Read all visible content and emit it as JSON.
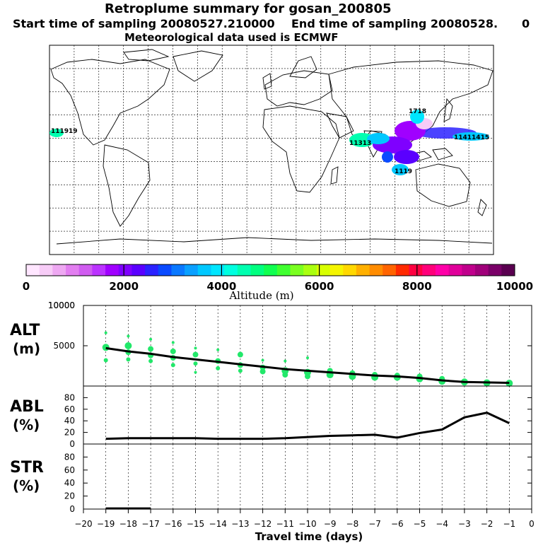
{
  "header": {
    "title": "Retroplume summary for gosan_200805",
    "start_label": "Start time of sampling 20080527.210000",
    "end_label": "End time of sampling 20080528.",
    "end_suffix": "0",
    "met_label": "Meteorological data used is ECMWF"
  },
  "colorbar": {
    "label": "Altitude (m)",
    "tick_labels": [
      "0",
      "2000",
      "4000",
      "6000",
      "8000",
      "10000"
    ],
    "colors": [
      "#ffe6ff",
      "#f7ccf7",
      "#eea8f2",
      "#e27ef0",
      "#d05cf0",
      "#bb33ff",
      "#a000ff",
      "#7f00ff",
      "#5a00ff",
      "#2b22ff",
      "#0a4aff",
      "#0a78ff",
      "#0aa0ff",
      "#00c8ff",
      "#00e6ff",
      "#00ffe0",
      "#00ffb0",
      "#00ff80",
      "#10ff50",
      "#40ff30",
      "#7aff20",
      "#aaff10",
      "#d8ff00",
      "#f5f500",
      "#ffd800",
      "#ffb000",
      "#ff8c00",
      "#ff6400",
      "#ff2a00",
      "#ff0040",
      "#ff007a",
      "#ff00a8",
      "#e0009a",
      "#c0008c",
      "#a0007a",
      "#7a0068",
      "#5a0050"
    ]
  },
  "map": {
    "plume_label_east": "11411415",
    "plume_label_west": "11313",
    "plume_label_pacific": "111919",
    "plume_label_south": "1119",
    "plume_label_japan": "1718"
  },
  "chart_data": [
    {
      "type": "line",
      "panel": "ALT",
      "ylabel": "ALT",
      "yunit": "(m)",
      "ylim": [
        0,
        10000
      ],
      "yticks": [
        0,
        5000,
        10000
      ],
      "ytick_labels": [
        "",
        "5000",
        "10000"
      ],
      "x": [
        -19,
        -18,
        -17,
        -16,
        -15,
        -14,
        -13,
        -12,
        -11,
        -10,
        -9,
        -8,
        -7,
        -6,
        -5,
        -4,
        -3,
        -2,
        -1
      ],
      "values": [
        4700,
        4300,
        4000,
        3600,
        3300,
        3000,
        2700,
        2400,
        2100,
        1900,
        1700,
        1500,
        1300,
        1200,
        1000,
        700,
        500,
        450,
        400
      ],
      "scatter_color": "#22e86a",
      "scatter_x": [
        -19,
        -19,
        -19,
        -18,
        -18,
        -18,
        -18,
        -17,
        -17,
        -17,
        -17,
        -16,
        -16,
        -16,
        -16,
        -15,
        -15,
        -15,
        -15,
        -14,
        -14,
        -14,
        -13,
        -13,
        -13,
        -12,
        -12,
        -12,
        -11,
        -11,
        -11,
        -10,
        -10,
        -10,
        -9,
        -9,
        -8,
        -8,
        -7,
        -7,
        -6,
        -6,
        -5,
        -5,
        -4,
        -4,
        -3,
        -2,
        -1
      ],
      "scatter_y": [
        6600,
        4800,
        3200,
        6200,
        5000,
        4200,
        3300,
        5800,
        4600,
        3800,
        3100,
        5400,
        4300,
        3500,
        2600,
        4700,
        3900,
        2800,
        1700,
        4500,
        3100,
        2200,
        3900,
        2600,
        1900,
        3200,
        2300,
        1800,
        3100,
        1900,
        1400,
        3500,
        1700,
        1200,
        1900,
        1400,
        1600,
        1200,
        1400,
        1100,
        1300,
        1100,
        1200,
        900,
        900,
        600,
        500,
        400,
        350
      ],
      "scatter_size": [
        2,
        5,
        3,
        2,
        5,
        4,
        3,
        2,
        4,
        4,
        3,
        2,
        4,
        4,
        3,
        2,
        4,
        3,
        2,
        2,
        4,
        3,
        4,
        4,
        3,
        2,
        4,
        4,
        2,
        5,
        4,
        2,
        5,
        4,
        4,
        5,
        4,
        5,
        4,
        5,
        4,
        5,
        4,
        5,
        4,
        5,
        5,
        5,
        5
      ]
    },
    {
      "type": "line",
      "panel": "ABL",
      "ylabel": "ABL",
      "yunit": "(%)",
      "ylim": [
        0,
        100
      ],
      "yticks": [
        0,
        20,
        40,
        60,
        80
      ],
      "ytick_labels": [
        "0",
        "20",
        "40",
        "60",
        "80"
      ],
      "x": [
        -19,
        -18,
        -17,
        -16,
        -15,
        -14,
        -13,
        -12,
        -11,
        -10,
        -9,
        -8,
        -7,
        -6,
        -5,
        -4,
        -3,
        -2,
        -1
      ],
      "values": [
        9,
        10,
        10,
        10,
        10,
        9,
        9,
        9,
        10,
        12,
        14,
        15,
        16,
        11,
        19,
        25,
        46,
        54,
        36
      ]
    },
    {
      "type": "line",
      "panel": "STR",
      "ylabel": "STR",
      "yunit": "(%)",
      "ylim": [
        0,
        100
      ],
      "yticks": [
        0,
        20,
        40,
        60,
        80
      ],
      "ytick_labels": [
        "0",
        "20",
        "40",
        "60",
        "80"
      ],
      "x": [
        -19,
        -18,
        -17
      ],
      "values": [
        1,
        1,
        1
      ]
    }
  ],
  "xaxis": {
    "label": "Travel time (days)",
    "xlim": [
      -20,
      0
    ],
    "ticks": [
      -20,
      -19,
      -18,
      -17,
      -16,
      -15,
      -14,
      -13,
      -12,
      -11,
      -10,
      -9,
      -8,
      -7,
      -6,
      -5,
      -4,
      -3,
      -2,
      -1,
      0
    ],
    "tick_labels": [
      "−20",
      "−19",
      "−18",
      "−17",
      "−16",
      "−15",
      "−14",
      "−13",
      "−12",
      "−11",
      "−10",
      "−9",
      "−8",
      "−7",
      "−6",
      "−5",
      "−4",
      "−3",
      "−2",
      "−1",
      "0"
    ]
  }
}
